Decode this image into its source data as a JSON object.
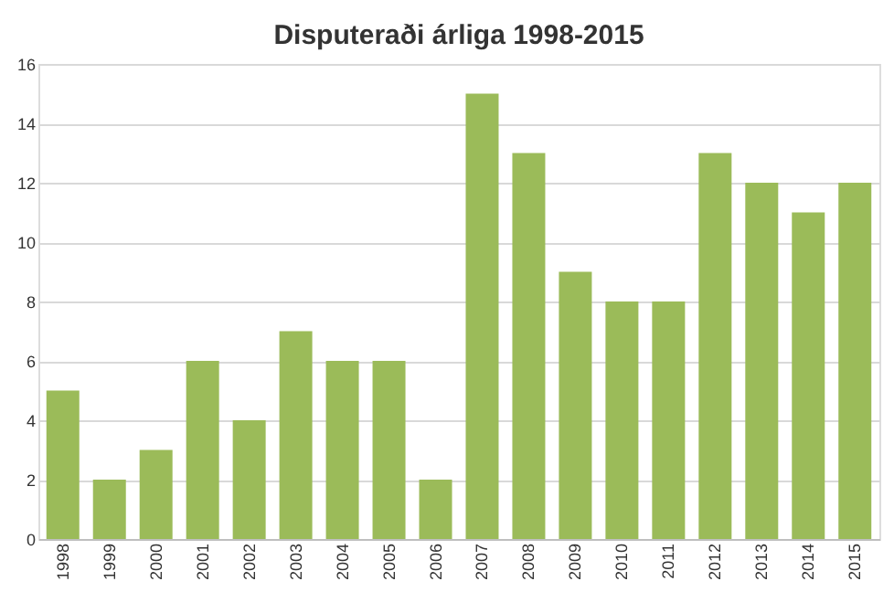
{
  "chart_data": {
    "type": "bar",
    "title": "Disputeraði árliga 1998-2015",
    "categories": [
      "1998",
      "1999",
      "2000",
      "2001",
      "2002",
      "2003",
      "2004",
      "2005",
      "2006",
      "2007",
      "2008",
      "2009",
      "2010",
      "2011",
      "2012",
      "2013",
      "2014",
      "2015"
    ],
    "values": [
      5,
      2,
      3,
      6,
      4,
      7,
      6,
      6,
      2,
      15,
      13,
      9,
      8,
      8,
      13,
      12,
      11,
      12
    ],
    "color": "#9bbb59",
    "ylim": [
      0,
      16
    ],
    "yticks": [
      0,
      2,
      4,
      6,
      8,
      10,
      12,
      14,
      16
    ],
    "grid": "y"
  }
}
